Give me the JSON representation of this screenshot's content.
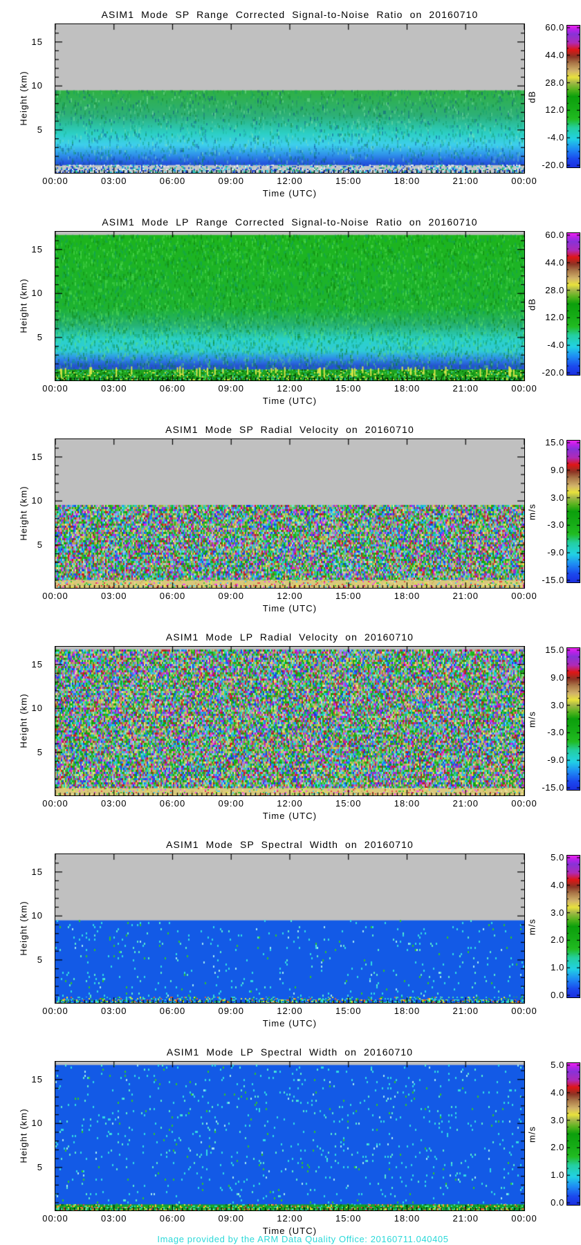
{
  "page": {
    "background": "#ffffff",
    "footer": {
      "text": "Image provided by the ARM Data Quality Office: 20160711.040405",
      "color": "#2bd9d9"
    }
  },
  "axes": {
    "xlabel": "Time (UTC)",
    "ylabel": "Height (km)",
    "x_tick_labels": [
      "00:00",
      "03:00",
      "06:00",
      "09:00",
      "12:00",
      "15:00",
      "18:00",
      "21:00",
      "00:00"
    ],
    "x_tick_hours": [
      0,
      3,
      6,
      9,
      12,
      15,
      18,
      21,
      24
    ],
    "x_range_hours": [
      0,
      24
    ],
    "y_tick_labels": [
      "5",
      "10",
      "15"
    ],
    "y_tick_km": [
      5,
      10,
      15
    ],
    "y_range_km": [
      0,
      16.9
    ],
    "no_data_color": "#c0c0c0",
    "grid": false
  },
  "colormap": {
    "description": "rainbow colorbar, bottom=min to top=max",
    "stops": [
      [
        0.0,
        "#1b2fe0"
      ],
      [
        0.06,
        "#1b49ee"
      ],
      [
        0.13,
        "#1e8df4"
      ],
      [
        0.2,
        "#22d2e4"
      ],
      [
        0.28,
        "#24cfa0"
      ],
      [
        0.34,
        "#22bc22"
      ],
      [
        0.42,
        "#16ac16"
      ],
      [
        0.5,
        "#0ca00c"
      ],
      [
        0.55,
        "#58b41e"
      ],
      [
        0.6,
        "#a8b84a"
      ],
      [
        0.635,
        "#e8e23c"
      ],
      [
        0.68,
        "#d2b46a"
      ],
      [
        0.74,
        "#a87246"
      ],
      [
        0.78,
        "#8c3424"
      ],
      [
        0.83,
        "#e01616"
      ],
      [
        0.88,
        "#b02ab8"
      ],
      [
        0.94,
        "#8833d8"
      ],
      [
        0.97,
        "#b822e8"
      ],
      [
        1.0,
        "#ee22ee"
      ]
    ]
  },
  "chart_data": {
    "type": "heatmap",
    "instrument": "ASIM1",
    "date": "20160710",
    "panels": [
      {
        "id": "sp-snr",
        "title": "ASIM1 Mode SP Range Corrected Signal-to-Noise Ratio on 20160710",
        "mode": "SP",
        "quantity": "Range Corrected Signal-to-Noise Ratio",
        "colorbar": {
          "unit": "dB",
          "tick_labels": [
            "60.0",
            "44.0",
            "28.0",
            "12.0",
            "-4.0",
            "-20.0"
          ],
          "range": [
            -20,
            60
          ]
        },
        "data_top_km": 9.5,
        "fill": {
          "kind": "gradient",
          "stops": [
            [
              0,
              "#2fb143"
            ],
            [
              0.3,
              "#2db077"
            ],
            [
              0.52,
              "#2ccfc4"
            ],
            [
              0.66,
              "#3ecfec"
            ],
            [
              0.78,
              "#2f93ea"
            ],
            [
              0.88,
              "#2458de"
            ],
            [
              1,
              "#1d46c2"
            ]
          ],
          "noise": {
            "prob": 0.2,
            "colors": [
              "#0b7c2a",
              "#8fe8b0",
              "#0b9a6e",
              "#063e8c"
            ],
            "alpha": 0.3
          },
          "bottom": {
            "km": 1.0,
            "base": "#bfc4c6",
            "prob": 0.8,
            "palette": [
              "#2a62e0",
              "#38cadf",
              "#ced3d5",
              "#1c40cf",
              "#e8eef0",
              "#2db077"
            ]
          }
        }
      },
      {
        "id": "lp-snr",
        "title": "ASIM1 Mode LP Range Corrected Signal-to-Noise Ratio on 20160710",
        "mode": "LP",
        "quantity": "Range Corrected Signal-to-Noise Ratio",
        "colorbar": {
          "unit": "dB",
          "tick_labels": [
            "60.0",
            "44.0",
            "28.0",
            "12.0",
            "-4.0",
            "-20.0"
          ],
          "range": [
            -20,
            60
          ]
        },
        "data_top_km": 16.65,
        "fill": {
          "kind": "gradient",
          "stops": [
            [
              0,
              "#1db51d"
            ],
            [
              0.5,
              "#1eb330"
            ],
            [
              0.62,
              "#27b273"
            ],
            [
              0.72,
              "#2bd2ca"
            ],
            [
              0.8,
              "#2fc9d8"
            ],
            [
              0.855,
              "#2e85e9"
            ],
            [
              0.9,
              "#2453cf"
            ],
            [
              1,
              "#2a5ad4"
            ]
          ],
          "noise": {
            "prob": 0.3,
            "colors": [
              "#0a7d0a",
              "#63e763",
              "#0b9a6e"
            ],
            "alpha": 0.33
          },
          "bottom": {
            "km": 1.35,
            "base": "#1fa31f",
            "prob": 0.75,
            "palette": [
              "#0d7f0d",
              "#45cf45",
              "#c9dc42",
              "#085708",
              "#24b88a",
              "#159015"
            ],
            "streaks": {
              "color": "#d8e44a",
              "count": 45
            }
          }
        }
      },
      {
        "id": "sp-velocity",
        "title": "ASIM1 Mode SP Radial Velocity  on 20160710",
        "mode": "SP",
        "quantity": "Radial Velocity",
        "colorbar": {
          "unit": "m/s",
          "tick_labels": [
            "15.0",
            "9.0",
            "3.0",
            "-3.0",
            "-9.0",
            "-15.0"
          ],
          "range": [
            -15,
            15
          ]
        },
        "data_top_km": 9.5,
        "fill": {
          "kind": "confetti",
          "pastel": 0.25,
          "bottom": {
            "km": 1.0,
            "base": "#d9c87b",
            "prob": 0.38,
            "palette": [
              "#c9b55e",
              "#e9dc9a",
              "#38c838",
              "#f04cf0",
              "#e84040",
              "#44ccf0",
              "#e8e84a"
            ]
          }
        }
      },
      {
        "id": "lp-velocity",
        "title": "ASIM1 Mode LP Radial Velocity  on 20160710",
        "mode": "LP",
        "quantity": "Radial Velocity",
        "colorbar": {
          "unit": "m/s",
          "tick_labels": [
            "15.0",
            "9.0",
            "3.0",
            "-3.0",
            "-9.0",
            "-15.0"
          ],
          "range": [
            -15,
            15
          ]
        },
        "data_top_km": 16.65,
        "fill": {
          "kind": "confetti",
          "pastel": 0.25,
          "bottom": {
            "km": 0.95,
            "base": "#d9c87b",
            "prob": 0.38,
            "palette": [
              "#c9b55e",
              "#e9dc9a",
              "#38c838",
              "#f04cf0",
              "#e84040",
              "#44ccf0",
              "#e8e84a"
            ]
          }
        }
      },
      {
        "id": "sp-width",
        "title": "ASIM1 Mode SP Spectral Width  on 20160710",
        "mode": "SP",
        "quantity": "Spectral Width",
        "colorbar": {
          "unit": "m/s",
          "tick_labels": [
            "5.0",
            "4.0",
            "3.0",
            "2.0",
            "1.0",
            "0.0"
          ],
          "range": [
            0,
            5
          ]
        },
        "data_top_km": 9.5,
        "fill": {
          "kind": "speckle",
          "base": "#135ae6",
          "speckles": [
            [
              "#2fd9e2",
              0.018
            ],
            [
              "#57e8cf",
              0.008
            ],
            [
              "#2fc32f",
              0.005
            ],
            [
              "#9fe8f0",
              0.003
            ]
          ],
          "bottom": {
            "km": 0.75,
            "base": "#135ae6",
            "prob": 0.55,
            "palette": [
              "#24ba24",
              "#2cd8cf",
              "#e8e830",
              "#e8622a",
              "#49e89a",
              "#2fd9e2"
            ]
          }
        }
      },
      {
        "id": "lp-width",
        "title": "ASIM1 Mode LP Spectral Width  on 20160710",
        "mode": "LP",
        "quantity": "Spectral Width",
        "colorbar": {
          "unit": "m/s",
          "tick_labels": [
            "5.0",
            "4.0",
            "3.0",
            "2.0",
            "1.0",
            "0.0"
          ],
          "range": [
            0,
            5
          ]
        },
        "data_top_km": 16.65,
        "fill": {
          "kind": "speckle",
          "base": "#135ae6",
          "speckles": [
            [
              "#2fd9e2",
              0.02
            ],
            [
              "#57e8cf",
              0.008
            ],
            [
              "#2fc32f",
              0.006
            ],
            [
              "#9fe8f0",
              0.003
            ]
          ],
          "bottom": {
            "km": 0.8,
            "base": "#17a02c",
            "prob": 0.7,
            "palette": [
              "#24ba24",
              "#2cd8cf",
              "#e8e830",
              "#e84040",
              "#49e89a",
              "#0a6e0a",
              "#f0a030"
            ]
          }
        }
      }
    ]
  }
}
